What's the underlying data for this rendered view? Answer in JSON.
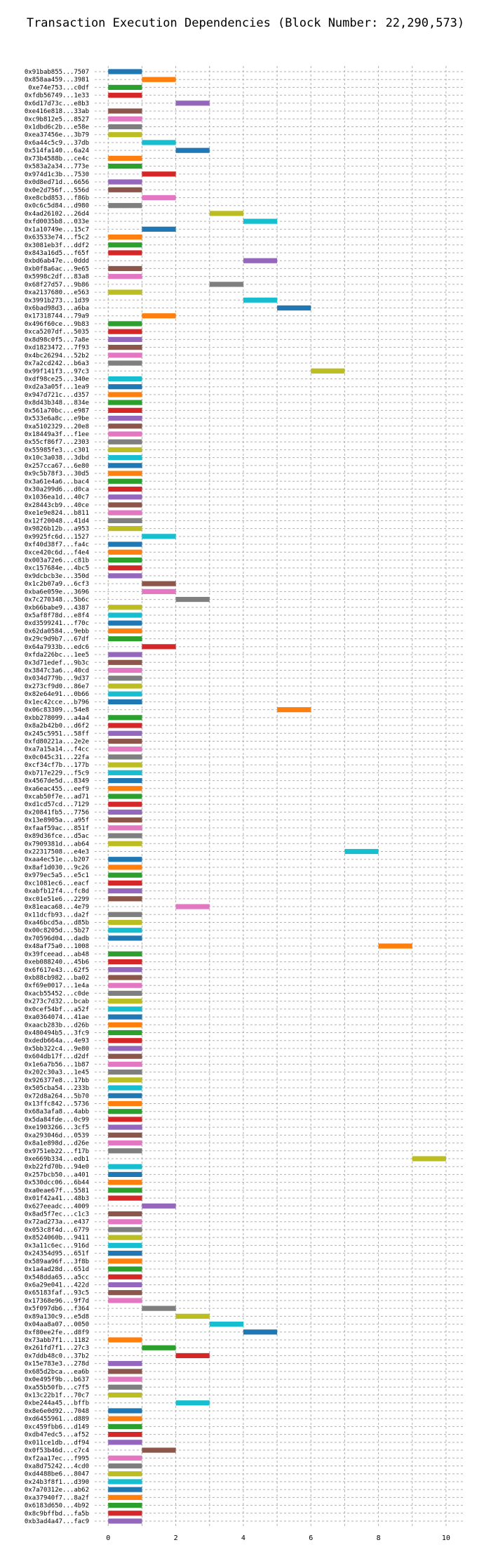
{
  "chart_data": {
    "type": "bar",
    "orientation": "horizontal",
    "title": "Transaction Execution Dependencies (Block Number: 22,290,573)",
    "xlabel": "",
    "ylabel": "",
    "xlim": [
      -0.4,
      10.5
    ],
    "xticks": [
      0,
      2,
      4,
      6,
      8,
      10
    ],
    "grid": true,
    "palette": [
      "#1f77b4",
      "#ff7f0e",
      "#2ca02c",
      "#d62728",
      "#9467bd",
      "#8c564b",
      "#e377c2",
      "#7f7f7f",
      "#bcbd22",
      "#17becf"
    ],
    "bars": [
      {
        "label": "0x91bab855...7507",
        "start": 0,
        "end": 1
      },
      {
        "label": "0x858aa459...3981",
        "start": 1,
        "end": 2
      },
      {
        "label": "0xe74e753...c0df",
        "start": 0,
        "end": 1
      },
      {
        "label": "0xfdb56749...1e33",
        "start": 0,
        "end": 1
      },
      {
        "label": "0x6d17d73c...e8b3",
        "start": 2,
        "end": 3
      },
      {
        "label": "0xe416e818...33ab",
        "start": 0,
        "end": 1
      },
      {
        "label": "0xc9b812e5...8527",
        "start": 0,
        "end": 1
      },
      {
        "label": "0x1dbd6c2b...e58e",
        "start": 0,
        "end": 1
      },
      {
        "label": "0xea37456e...3b79",
        "start": 0,
        "end": 1
      },
      {
        "label": "0x6a44c5c9...37db",
        "start": 1,
        "end": 2
      },
      {
        "label": "0x514fa140...6a24",
        "start": 2,
        "end": 3
      },
      {
        "label": "0x73b4588b...ce4c",
        "start": 0,
        "end": 1
      },
      {
        "label": "0x583a2a34...773e",
        "start": 0,
        "end": 1
      },
      {
        "label": "0x974d1c3b...7530",
        "start": 1,
        "end": 2
      },
      {
        "label": "0x0d8ed71d...6656",
        "start": 0,
        "end": 1
      },
      {
        "label": "0x0e2d756f...556d",
        "start": 0,
        "end": 1
      },
      {
        "label": "0xe8cbd853...f86b",
        "start": 1,
        "end": 2
      },
      {
        "label": "0x0c6c5d84...d980",
        "start": 0,
        "end": 1
      },
      {
        "label": "0x4ad26102...26d4",
        "start": 3,
        "end": 4
      },
      {
        "label": "0xfd0035b8...033e",
        "start": 4,
        "end": 5
      },
      {
        "label": "0x1a10749e...15c7",
        "start": 1,
        "end": 2
      },
      {
        "label": "0x63533e74...f5c2",
        "start": 0,
        "end": 1
      },
      {
        "label": "0x3081eb3f...ddf2",
        "start": 0,
        "end": 1
      },
      {
        "label": "0x843a16d5...f65f",
        "start": 0,
        "end": 1
      },
      {
        "label": "0xbd6ab47e...0ddd",
        "start": 4,
        "end": 5
      },
      {
        "label": "0xb0f8a6ac...9e65",
        "start": 0,
        "end": 1
      },
      {
        "label": "0x5998c2df...83a8",
        "start": 0,
        "end": 1
      },
      {
        "label": "0x68f27d57...9b86",
        "start": 3,
        "end": 4
      },
      {
        "label": "0xa2137680...e563",
        "start": 0,
        "end": 1
      },
      {
        "label": "0x3991b273...1d39",
        "start": 4,
        "end": 5
      },
      {
        "label": "0x6bad98d3...a6ba",
        "start": 5,
        "end": 6
      },
      {
        "label": "0x17318744...79a9",
        "start": 1,
        "end": 2
      },
      {
        "label": "0x496f60ce...9b83",
        "start": 0,
        "end": 1
      },
      {
        "label": "0xca5207df...5035",
        "start": 0,
        "end": 1
      },
      {
        "label": "0x8d98c0f5...7a8e",
        "start": 0,
        "end": 1
      },
      {
        "label": "0xd1823472...7f93",
        "start": 0,
        "end": 1
      },
      {
        "label": "0x4bc26294...52b2",
        "start": 0,
        "end": 1
      },
      {
        "label": "0x7a2cd242...b6a3",
        "start": 0,
        "end": 1
      },
      {
        "label": "0x99f141f3...97c3",
        "start": 6,
        "end": 7
      },
      {
        "label": "0xdf98ce25...340e",
        "start": 0,
        "end": 1
      },
      {
        "label": "0xd2a3a05f...1ea9",
        "start": 0,
        "end": 1
      },
      {
        "label": "0x947d721c...d357",
        "start": 0,
        "end": 1
      },
      {
        "label": "0x8d43b348...834e",
        "start": 0,
        "end": 1
      },
      {
        "label": "0x561a70bc...e987",
        "start": 0,
        "end": 1
      },
      {
        "label": "0x533e6a8c...e9be",
        "start": 0,
        "end": 1
      },
      {
        "label": "0xa5102329...20e8",
        "start": 0,
        "end": 1
      },
      {
        "label": "0x18449a3f...f1ee",
        "start": 0,
        "end": 1
      },
      {
        "label": "0x55cf86f7...2303",
        "start": 0,
        "end": 1
      },
      {
        "label": "0x55985fe3...c301",
        "start": 0,
        "end": 1
      },
      {
        "label": "0x10c3a038...3dbd",
        "start": 0,
        "end": 1
      },
      {
        "label": "0x257cca67...6e80",
        "start": 0,
        "end": 1
      },
      {
        "label": "0x9c5b78f3...30d5",
        "start": 0,
        "end": 1
      },
      {
        "label": "0x3a61e4a6...bac4",
        "start": 0,
        "end": 1
      },
      {
        "label": "0x30a299d6...d0ca",
        "start": 0,
        "end": 1
      },
      {
        "label": "0x1036ea1d...40c7",
        "start": 0,
        "end": 1
      },
      {
        "label": "0x28443cb9...40ce",
        "start": 0,
        "end": 1
      },
      {
        "label": "0xe1e9e824...b811",
        "start": 0,
        "end": 1
      },
      {
        "label": "0x12f20048...41d4",
        "start": 0,
        "end": 1
      },
      {
        "label": "0x9826b12b...a953",
        "start": 0,
        "end": 1
      },
      {
        "label": "0x9925fc6d...1527",
        "start": 1,
        "end": 2
      },
      {
        "label": "0xf40d38f7...fa4c",
        "start": 0,
        "end": 1
      },
      {
        "label": "0xce420c6d...f4e4",
        "start": 0,
        "end": 1
      },
      {
        "label": "0x003a72e6...c81b",
        "start": 0,
        "end": 1
      },
      {
        "label": "0xc157684e...4bc5",
        "start": 0,
        "end": 1
      },
      {
        "label": "0x9dcbcb3e...350d",
        "start": 0,
        "end": 1
      },
      {
        "label": "0x1c2b07a9...6cf3",
        "start": 1,
        "end": 2
      },
      {
        "label": "0xba6e059e...3696",
        "start": 1,
        "end": 2
      },
      {
        "label": "0x7c270348...5b6c",
        "start": 2,
        "end": 3
      },
      {
        "label": "0xb66babe9...4387",
        "start": 0,
        "end": 1
      },
      {
        "label": "0x5af8f78d...e8f4",
        "start": 0,
        "end": 1
      },
      {
        "label": "0xd3599241...f70c",
        "start": 0,
        "end": 1
      },
      {
        "label": "0x62da0584...9ebb",
        "start": 0,
        "end": 1
      },
      {
        "label": "0x29c9d9b7...67df",
        "start": 0,
        "end": 1
      },
      {
        "label": "0x64a7933b...edc6",
        "start": 1,
        "end": 2
      },
      {
        "label": "0xfda226bc...1ee5",
        "start": 0,
        "end": 1
      },
      {
        "label": "0x3d71edef...9b3c",
        "start": 0,
        "end": 1
      },
      {
        "label": "0x3847c3a6...40cd",
        "start": 0,
        "end": 1
      },
      {
        "label": "0x034d779b...9d37",
        "start": 0,
        "end": 1
      },
      {
        "label": "0x273cf9d0...86e7",
        "start": 0,
        "end": 1
      },
      {
        "label": "0x82e64e91...0b66",
        "start": 0,
        "end": 1
      },
      {
        "label": "0x1ec42cce...b796",
        "start": 0,
        "end": 1
      },
      {
        "label": "0x06c83309...54e8",
        "start": 5,
        "end": 6
      },
      {
        "label": "0xbb278099...a4a4",
        "start": 0,
        "end": 1
      },
      {
        "label": "0x8a2b42b0...d6f2",
        "start": 0,
        "end": 1
      },
      {
        "label": "0x245c5951...58ff",
        "start": 0,
        "end": 1
      },
      {
        "label": "0xfd80221a...2e2e",
        "start": 0,
        "end": 1
      },
      {
        "label": "0xa7a15a14...f4cc",
        "start": 0,
        "end": 1
      },
      {
        "label": "0x0c045c31...22fa",
        "start": 0,
        "end": 1
      },
      {
        "label": "0xcf34cf7b...177b",
        "start": 0,
        "end": 1
      },
      {
        "label": "0xb717e229...f5c9",
        "start": 0,
        "end": 1
      },
      {
        "label": "0x4567de5d...8349",
        "start": 0,
        "end": 1
      },
      {
        "label": "0xa6eac455...eef9",
        "start": 0,
        "end": 1
      },
      {
        "label": "0xcab50f7e...ad71",
        "start": 0,
        "end": 1
      },
      {
        "label": "0xd1cd57cd...7129",
        "start": 0,
        "end": 1
      },
      {
        "label": "0x20841fb5...7756",
        "start": 0,
        "end": 1
      },
      {
        "label": "0x13e8905a...a95f",
        "start": 0,
        "end": 1
      },
      {
        "label": "0xfaaf59ac...851f",
        "start": 0,
        "end": 1
      },
      {
        "label": "0x89d36fce...d5ac",
        "start": 0,
        "end": 1
      },
      {
        "label": "0x7909381d...ab64",
        "start": 0,
        "end": 1
      },
      {
        "label": "0x22317508...e4e3",
        "start": 7,
        "end": 8
      },
      {
        "label": "0xaa4ec51e...b207",
        "start": 0,
        "end": 1
      },
      {
        "label": "0x8af1d030...9c26",
        "start": 0,
        "end": 1
      },
      {
        "label": "0x979ec5a5...e5c1",
        "start": 0,
        "end": 1
      },
      {
        "label": "0xc1081ec6...eacf",
        "start": 0,
        "end": 1
      },
      {
        "label": "0xabfb12f4...fc8d",
        "start": 0,
        "end": 1
      },
      {
        "label": "0xc01e51e6...2299",
        "start": 0,
        "end": 1
      },
      {
        "label": "0x81eaca68...4e79",
        "start": 2,
        "end": 3
      },
      {
        "label": "0x11dcfb93...da2f",
        "start": 0,
        "end": 1
      },
      {
        "label": "0xa46bcd5a...d85b",
        "start": 0,
        "end": 1
      },
      {
        "label": "0x00c8205d...5b27",
        "start": 0,
        "end": 1
      },
      {
        "label": "0x70596d04...dadb",
        "start": 0,
        "end": 1
      },
      {
        "label": "0x48af75a0...1008",
        "start": 8,
        "end": 9
      },
      {
        "label": "0x39fceead...ab48",
        "start": 0,
        "end": 1
      },
      {
        "label": "0xeb088240...45b6",
        "start": 0,
        "end": 1
      },
      {
        "label": "0x6f617e43...62f5",
        "start": 0,
        "end": 1
      },
      {
        "label": "0xb88cb982...ba02",
        "start": 0,
        "end": 1
      },
      {
        "label": "0xf69e0017...1e4a",
        "start": 0,
        "end": 1
      },
      {
        "label": "0xacb55452...c0de",
        "start": 0,
        "end": 1
      },
      {
        "label": "0x273c7d32...bcab",
        "start": 0,
        "end": 1
      },
      {
        "label": "0x0cef54bf...a52f",
        "start": 0,
        "end": 1
      },
      {
        "label": "0xa0364074...41ae",
        "start": 0,
        "end": 1
      },
      {
        "label": "0xaacb283b...d26b",
        "start": 0,
        "end": 1
      },
      {
        "label": "0x480494b5...3fc9",
        "start": 0,
        "end": 1
      },
      {
        "label": "0xdedb664a...4e93",
        "start": 0,
        "end": 1
      },
      {
        "label": "0x5bb322c4...9e80",
        "start": 0,
        "end": 1
      },
      {
        "label": "0x604db17f...d2df",
        "start": 0,
        "end": 1
      },
      {
        "label": "0x1e6a7b56...1b87",
        "start": 0,
        "end": 1
      },
      {
        "label": "0x202c30a3...1e45",
        "start": 0,
        "end": 1
      },
      {
        "label": "0x926377e8...17bb",
        "start": 0,
        "end": 1
      },
      {
        "label": "0x505cba54...233b",
        "start": 0,
        "end": 1
      },
      {
        "label": "0x72d8a264...5b70",
        "start": 0,
        "end": 1
      },
      {
        "label": "0x13ffc842...5736",
        "start": 0,
        "end": 1
      },
      {
        "label": "0x68a3afa8...4abb",
        "start": 0,
        "end": 1
      },
      {
        "label": "0x5da84fde...0c99",
        "start": 0,
        "end": 1
      },
      {
        "label": "0xe1903266...3cf5",
        "start": 0,
        "end": 1
      },
      {
        "label": "0xa293046d...0539",
        "start": 0,
        "end": 1
      },
      {
        "label": "0x8a1e898d...d26e",
        "start": 0,
        "end": 1
      },
      {
        "label": "0x9751eb22...f17b",
        "start": 0,
        "end": 1
      },
      {
        "label": "0xe669b334...edb1",
        "start": 9,
        "end": 10
      },
      {
        "label": "0xb22fd70b...94e0",
        "start": 0,
        "end": 1
      },
      {
        "label": "0x257bcb50...a401",
        "start": 0,
        "end": 1
      },
      {
        "label": "0x530dcc06...6b44",
        "start": 0,
        "end": 1
      },
      {
        "label": "0xa0eae67f...5581",
        "start": 0,
        "end": 1
      },
      {
        "label": "0x01f42a41...48b3",
        "start": 0,
        "end": 1
      },
      {
        "label": "0x627eeadc...4009",
        "start": 1,
        "end": 2
      },
      {
        "label": "0x8ad5f7ec...c1c3",
        "start": 0,
        "end": 1
      },
      {
        "label": "0x72ad273a...e437",
        "start": 0,
        "end": 1
      },
      {
        "label": "0x053c8f4d...6779",
        "start": 0,
        "end": 1
      },
      {
        "label": "0x8524060b...9411",
        "start": 0,
        "end": 1
      },
      {
        "label": "0x3a11c6ec...916d",
        "start": 0,
        "end": 1
      },
      {
        "label": "0x24354d95...651f",
        "start": 0,
        "end": 1
      },
      {
        "label": "0x589aa96f...3f8b",
        "start": 0,
        "end": 1
      },
      {
        "label": "0x1a4ad28d...651d",
        "start": 0,
        "end": 1
      },
      {
        "label": "0x548dda65...a5cc",
        "start": 0,
        "end": 1
      },
      {
        "label": "0x6a29e041...422d",
        "start": 0,
        "end": 1
      },
      {
        "label": "0x65183faf...93c5",
        "start": 0,
        "end": 1
      },
      {
        "label": "0x17368e96...9f7d",
        "start": 0,
        "end": 1
      },
      {
        "label": "0x5f097db6...f364",
        "start": 1,
        "end": 2
      },
      {
        "label": "0x89a130c9...e5d8",
        "start": 2,
        "end": 3
      },
      {
        "label": "0x04aa8a07...0050",
        "start": 3,
        "end": 4
      },
      {
        "label": "0xf80ee2fe...d8f9",
        "start": 4,
        "end": 5
      },
      {
        "label": "0x73abb7f1...1182",
        "start": 0,
        "end": 1
      },
      {
        "label": "0x261fd7f1...27c3",
        "start": 1,
        "end": 2
      },
      {
        "label": "0x7ddb48c0...37b2",
        "start": 2,
        "end": 3
      },
      {
        "label": "0x15e783e3...278d",
        "start": 0,
        "end": 1
      },
      {
        "label": "0x685d2bca...ea6b",
        "start": 0,
        "end": 1
      },
      {
        "label": "0x0e495f9b...b637",
        "start": 0,
        "end": 1
      },
      {
        "label": "0xa55b50fb...c7f5",
        "start": 0,
        "end": 1
      },
      {
        "label": "0x13c22b1f...70c7",
        "start": 0,
        "end": 1
      },
      {
        "label": "0xbe244a45...bffb",
        "start": 2,
        "end": 3
      },
      {
        "label": "0x8e6e0d92...7048",
        "start": 0,
        "end": 1
      },
      {
        "label": "0xd6455961...d889",
        "start": 0,
        "end": 1
      },
      {
        "label": "0xc459fbb6...d149",
        "start": 0,
        "end": 1
      },
      {
        "label": "0xdb47edc5...af52",
        "start": 0,
        "end": 1
      },
      {
        "label": "0x011ce1db...df94",
        "start": 0,
        "end": 1
      },
      {
        "label": "0x0f53b46d...c7c4",
        "start": 1,
        "end": 2
      },
      {
        "label": "0xf2aa17ec...f995",
        "start": 0,
        "end": 1
      },
      {
        "label": "0xa8d75242...4cd0",
        "start": 0,
        "end": 1
      },
      {
        "label": "0xd4488be6...8047",
        "start": 0,
        "end": 1
      },
      {
        "label": "0x24b3f8f1...d390",
        "start": 0,
        "end": 1
      },
      {
        "label": "0x7a70312e...ab62",
        "start": 0,
        "end": 1
      },
      {
        "label": "0xa37940f7...8a2f",
        "start": 0,
        "end": 1
      },
      {
        "label": "0x6183d650...4b92",
        "start": 0,
        "end": 1
      },
      {
        "label": "0x8c9bffbd...fa5b",
        "start": 0,
        "end": 1
      },
      {
        "label": "0xb3ad4a47...fac9",
        "start": 0,
        "end": 1
      }
    ]
  }
}
